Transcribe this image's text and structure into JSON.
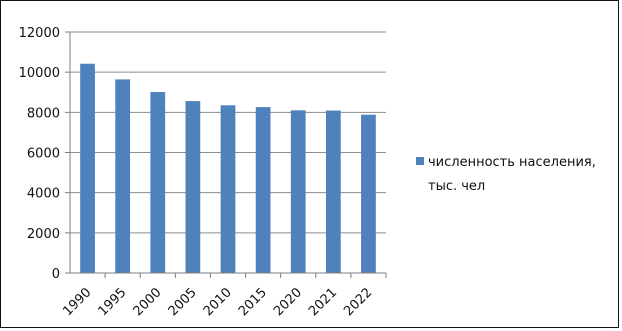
{
  "chart_data": {
    "type": "bar",
    "categories": [
      "1990",
      "1995",
      "2000",
      "2005",
      "2010",
      "2015",
      "2020",
      "2021",
      "2022"
    ],
    "series": [
      {
        "name": "численность населения, тыс. чел",
        "values": [
          10420,
          9640,
          9010,
          8560,
          8350,
          8260,
          8100,
          8090,
          7880
        ]
      }
    ],
    "ylim": [
      0,
      12000
    ],
    "yticks": [
      0,
      2000,
      4000,
      6000,
      8000,
      10000,
      12000
    ],
    "grid": true,
    "legend": "right",
    "colors": {
      "bar": "#4f81bd",
      "grid": "#8c8c8c",
      "axis": "#7f7f7f"
    }
  },
  "legend": {
    "line1": "численность населения,",
    "line2": "тыс. чел"
  }
}
